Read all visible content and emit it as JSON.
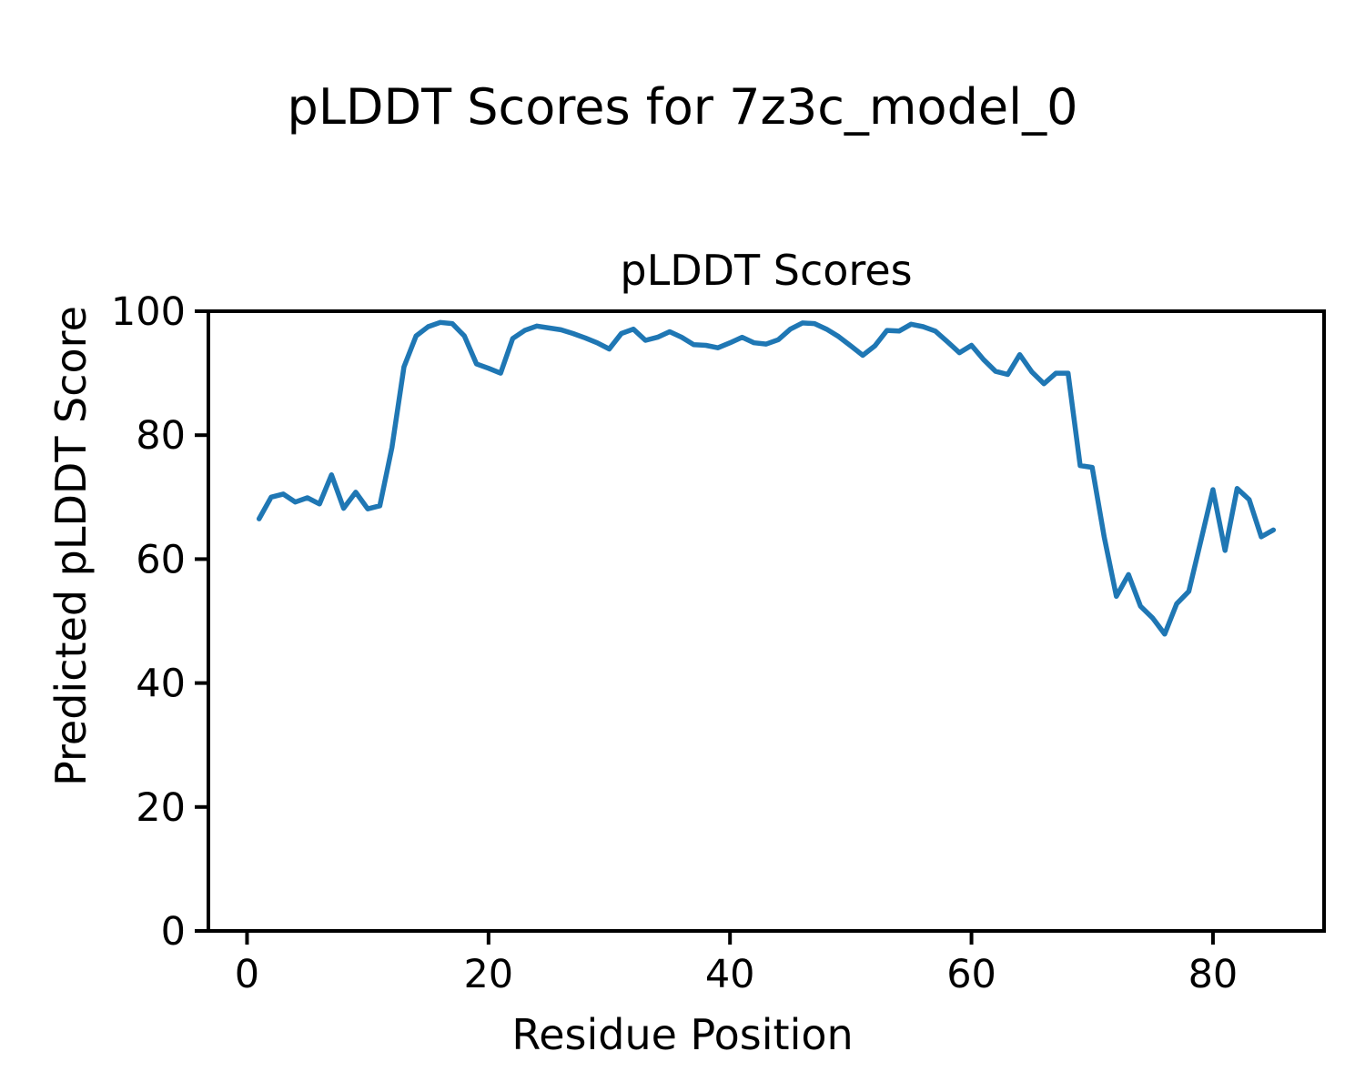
{
  "figure": {
    "suptitle": "pLDDT Scores for 7z3c_model_0"
  },
  "chart_data": {
    "type": "line",
    "title": "pLDDT Scores",
    "xlabel": "Residue Position",
    "ylabel": "Predicted pLDDT Score",
    "xlim": [
      -3.2,
      89.2
    ],
    "ylim": [
      0,
      100
    ],
    "xticks": [
      0,
      20,
      40,
      60,
      80
    ],
    "yticks": [
      0,
      20,
      40,
      60,
      80,
      100
    ],
    "grid": false,
    "legend": "none",
    "line_color": "#1f77b4",
    "series_name": "pLDDT",
    "x": [
      1,
      2,
      3,
      4,
      5,
      6,
      7,
      8,
      9,
      10,
      11,
      12,
      13,
      14,
      15,
      16,
      17,
      18,
      19,
      20,
      21,
      22,
      23,
      24,
      25,
      26,
      27,
      28,
      29,
      30,
      31,
      32,
      33,
      34,
      35,
      36,
      37,
      38,
      39,
      40,
      41,
      42,
      43,
      44,
      45,
      46,
      47,
      48,
      49,
      50,
      51,
      52,
      53,
      54,
      55,
      56,
      57,
      58,
      59,
      60,
      61,
      62,
      63,
      64,
      65,
      66,
      67,
      68,
      69,
      70,
      71,
      72,
      73,
      74,
      75,
      76,
      77,
      78,
      79,
      80,
      81,
      82,
      83,
      84,
      85
    ],
    "y": [
      66.5,
      70.0,
      70.5,
      69.2,
      69.9,
      68.9,
      73.6,
      68.2,
      70.8,
      68.1,
      68.6,
      78.0,
      91.0,
      96.0,
      97.5,
      98.2,
      98.0,
      96.0,
      91.5,
      90.8,
      90.0,
      95.6,
      96.9,
      97.6,
      97.3,
      97.0,
      96.4,
      95.7,
      94.9,
      93.9,
      96.4,
      97.1,
      95.3,
      95.8,
      96.7,
      95.8,
      94.6,
      94.5,
      94.1,
      94.9,
      95.8,
      94.9,
      94.7,
      95.4,
      97.1,
      98.1,
      98.0,
      97.1,
      95.9,
      94.4,
      92.9,
      94.4,
      96.9,
      96.8,
      97.9,
      97.5,
      96.8,
      95.1,
      93.3,
      94.5,
      92.2,
      90.3,
      89.8,
      93.0,
      90.2,
      88.3,
      90.0,
      90.0,
      75.1,
      74.8,
      63.5,
      54.0,
      57.5,
      52.4,
      50.5,
      47.9,
      52.8,
      54.8,
      63.0,
      71.2,
      61.4,
      71.4,
      69.6,
      63.6,
      64.7
    ]
  }
}
